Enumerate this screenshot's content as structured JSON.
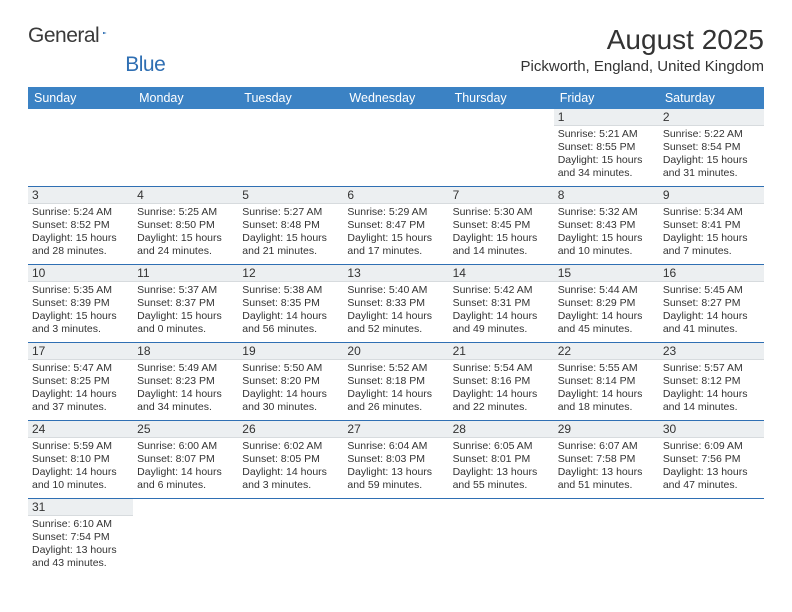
{
  "logo": {
    "text1": "General",
    "text2": "Blue",
    "icon_color": "#2f6fb3"
  },
  "title": "August 2025",
  "location": "Pickworth, England, United Kingdom",
  "header_bg": "#3b82c4",
  "daynum_bg": "#eceff1",
  "border_color": "#2f6fb3",
  "weekdays": [
    "Sunday",
    "Monday",
    "Tuesday",
    "Wednesday",
    "Thursday",
    "Friday",
    "Saturday"
  ],
  "weeks": [
    [
      null,
      null,
      null,
      null,
      null,
      {
        "n": "1",
        "sr": "5:21 AM",
        "ss": "8:55 PM",
        "dl": "15 hours and 34 minutes."
      },
      {
        "n": "2",
        "sr": "5:22 AM",
        "ss": "8:54 PM",
        "dl": "15 hours and 31 minutes."
      }
    ],
    [
      {
        "n": "3",
        "sr": "5:24 AM",
        "ss": "8:52 PM",
        "dl": "15 hours and 28 minutes."
      },
      {
        "n": "4",
        "sr": "5:25 AM",
        "ss": "8:50 PM",
        "dl": "15 hours and 24 minutes."
      },
      {
        "n": "5",
        "sr": "5:27 AM",
        "ss": "8:48 PM",
        "dl": "15 hours and 21 minutes."
      },
      {
        "n": "6",
        "sr": "5:29 AM",
        "ss": "8:47 PM",
        "dl": "15 hours and 17 minutes."
      },
      {
        "n": "7",
        "sr": "5:30 AM",
        "ss": "8:45 PM",
        "dl": "15 hours and 14 minutes."
      },
      {
        "n": "8",
        "sr": "5:32 AM",
        "ss": "8:43 PM",
        "dl": "15 hours and 10 minutes."
      },
      {
        "n": "9",
        "sr": "5:34 AM",
        "ss": "8:41 PM",
        "dl": "15 hours and 7 minutes."
      }
    ],
    [
      {
        "n": "10",
        "sr": "5:35 AM",
        "ss": "8:39 PM",
        "dl": "15 hours and 3 minutes."
      },
      {
        "n": "11",
        "sr": "5:37 AM",
        "ss": "8:37 PM",
        "dl": "15 hours and 0 minutes."
      },
      {
        "n": "12",
        "sr": "5:38 AM",
        "ss": "8:35 PM",
        "dl": "14 hours and 56 minutes."
      },
      {
        "n": "13",
        "sr": "5:40 AM",
        "ss": "8:33 PM",
        "dl": "14 hours and 52 minutes."
      },
      {
        "n": "14",
        "sr": "5:42 AM",
        "ss": "8:31 PM",
        "dl": "14 hours and 49 minutes."
      },
      {
        "n": "15",
        "sr": "5:44 AM",
        "ss": "8:29 PM",
        "dl": "14 hours and 45 minutes."
      },
      {
        "n": "16",
        "sr": "5:45 AM",
        "ss": "8:27 PM",
        "dl": "14 hours and 41 minutes."
      }
    ],
    [
      {
        "n": "17",
        "sr": "5:47 AM",
        "ss": "8:25 PM",
        "dl": "14 hours and 37 minutes."
      },
      {
        "n": "18",
        "sr": "5:49 AM",
        "ss": "8:23 PM",
        "dl": "14 hours and 34 minutes."
      },
      {
        "n": "19",
        "sr": "5:50 AM",
        "ss": "8:20 PM",
        "dl": "14 hours and 30 minutes."
      },
      {
        "n": "20",
        "sr": "5:52 AM",
        "ss": "8:18 PM",
        "dl": "14 hours and 26 minutes."
      },
      {
        "n": "21",
        "sr": "5:54 AM",
        "ss": "8:16 PM",
        "dl": "14 hours and 22 minutes."
      },
      {
        "n": "22",
        "sr": "5:55 AM",
        "ss": "8:14 PM",
        "dl": "14 hours and 18 minutes."
      },
      {
        "n": "23",
        "sr": "5:57 AM",
        "ss": "8:12 PM",
        "dl": "14 hours and 14 minutes."
      }
    ],
    [
      {
        "n": "24",
        "sr": "5:59 AM",
        "ss": "8:10 PM",
        "dl": "14 hours and 10 minutes."
      },
      {
        "n": "25",
        "sr": "6:00 AM",
        "ss": "8:07 PM",
        "dl": "14 hours and 6 minutes."
      },
      {
        "n": "26",
        "sr": "6:02 AM",
        "ss": "8:05 PM",
        "dl": "14 hours and 3 minutes."
      },
      {
        "n": "27",
        "sr": "6:04 AM",
        "ss": "8:03 PM",
        "dl": "13 hours and 59 minutes."
      },
      {
        "n": "28",
        "sr": "6:05 AM",
        "ss": "8:01 PM",
        "dl": "13 hours and 55 minutes."
      },
      {
        "n": "29",
        "sr": "6:07 AM",
        "ss": "7:58 PM",
        "dl": "13 hours and 51 minutes."
      },
      {
        "n": "30",
        "sr": "6:09 AM",
        "ss": "7:56 PM",
        "dl": "13 hours and 47 minutes."
      }
    ],
    [
      {
        "n": "31",
        "sr": "6:10 AM",
        "ss": "7:54 PM",
        "dl": "13 hours and 43 minutes."
      },
      null,
      null,
      null,
      null,
      null,
      null
    ]
  ],
  "labels": {
    "sunrise": "Sunrise: ",
    "sunset": "Sunset: ",
    "daylight": "Daylight: "
  }
}
